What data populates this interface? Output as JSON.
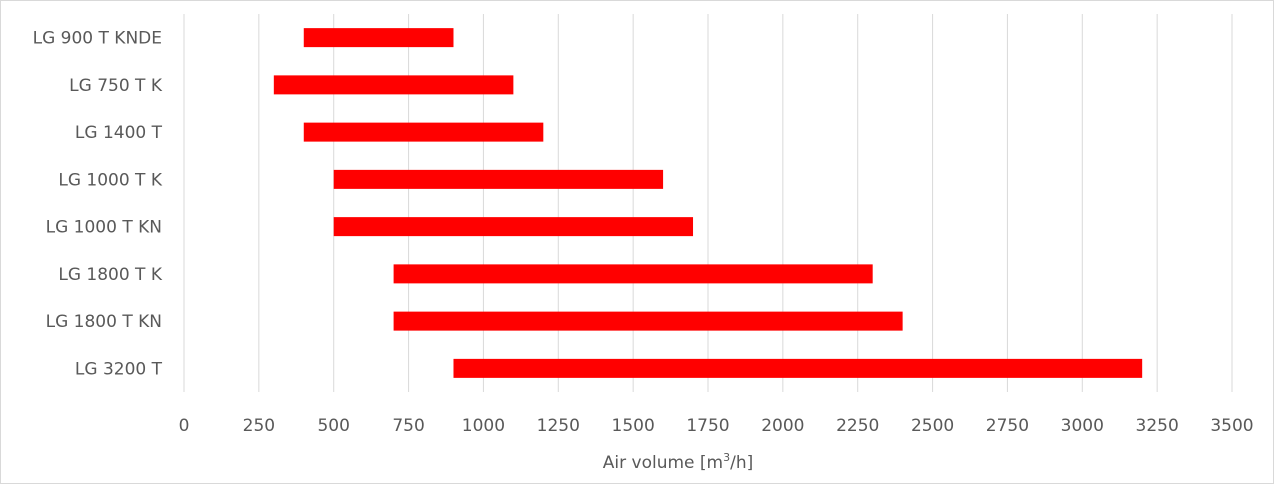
{
  "chart_data": {
    "type": "bar",
    "orientation": "horizontal",
    "style": "floating-range",
    "categories": [
      "LG 900 T KNDE",
      "LG 750 T K",
      "LG 1400 T",
      "LG 1000 T K",
      "LG 1000 T KN",
      "LG 1800 T K",
      "LG 1800 T KN",
      "LG 3200 T"
    ],
    "ranges": [
      [
        400,
        900
      ],
      [
        300,
        1100
      ],
      [
        400,
        1200
      ],
      [
        500,
        1600
      ],
      [
        500,
        1700
      ],
      [
        700,
        2300
      ],
      [
        700,
        2400
      ],
      [
        900,
        3200
      ]
    ],
    "xlim": [
      0,
      3500
    ],
    "xticks": [
      0,
      250,
      500,
      750,
      1000,
      1250,
      1500,
      1750,
      2000,
      2250,
      2500,
      2750,
      3000,
      3250,
      3500
    ],
    "xlabel": {
      "main": "Air volume [m",
      "superscript": "3",
      "suffix": "/h]"
    },
    "ylabel": "",
    "title": "",
    "grid": true,
    "legend": "none",
    "bar_color": "#ff0000",
    "grid_color": "#d9d9d9",
    "text_color": "#595959"
  }
}
